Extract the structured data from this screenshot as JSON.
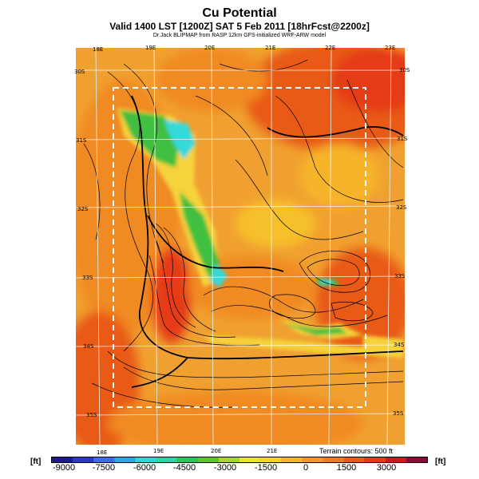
{
  "header": {
    "title": "Cu Potential",
    "subtitle": "Valid 1400 LST [1200Z] SAT 5 Feb 2011 [18hrFcst@2200z]",
    "model_note": "Dr.Jack BLIPMAP from RASP 12km GFS-initialized WRF-ARW model"
  },
  "map": {
    "top_ticks": [
      "18E",
      "19E",
      "20E",
      "21E",
      "22E",
      "23E"
    ],
    "bottom_ticks": [
      "18E",
      "19E",
      "20E",
      "21E"
    ],
    "left_ticks": [
      "30S",
      "31S",
      "32S",
      "33S",
      "34S",
      "35S"
    ],
    "right_ticks": [
      "30S",
      "31S",
      "32S",
      "33S",
      "34S",
      "35S"
    ],
    "terrain_note": "Terrain contours: 500 ft",
    "colors": {
      "background": "#f0a030",
      "warm": "#f08a20",
      "hot": "#e85a18",
      "veryhot": "#e53a12",
      "yellow": "#f6d23a",
      "green": "#3fbf3f",
      "cyan": "#36d9d9",
      "blue": "#1e66e0"
    }
  },
  "colorbar": {
    "unit_left": "[ft]",
    "unit_right": "[ft]",
    "labels": [
      "-9000",
      "-7500",
      "-6000",
      "-4500",
      "-3000",
      "-1500",
      "0",
      "1500",
      "3000"
    ],
    "colors": [
      "#1a1a8c",
      "#2a38c8",
      "#3a6ee6",
      "#2aa6e6",
      "#2ad6d6",
      "#2ad6a6",
      "#2ac85a",
      "#5ac82a",
      "#a6d62a",
      "#e6e62a",
      "#f6d22a",
      "#f6b42a",
      "#f6962a",
      "#f07a20",
      "#ea5a1a",
      "#e43a14",
      "#c81a1a",
      "#8a0a3a"
    ]
  }
}
